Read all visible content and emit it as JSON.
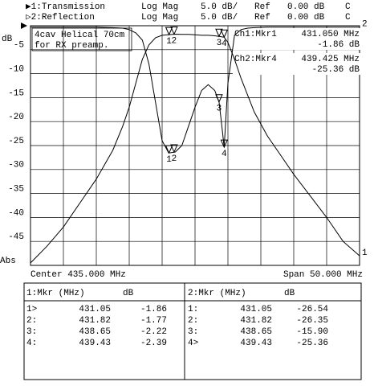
{
  "chart_data": {
    "type": "line",
    "header": [
      [
        "▶1:Transmission",
        "Log Mag",
        "5.0 dB/",
        "Ref",
        "0.00 dB",
        "C"
      ],
      [
        "▷2:Reflection",
        "Log Mag",
        "5.0 dB/",
        "Ref",
        "0.00 dB",
        "C"
      ]
    ],
    "y_label": "dB",
    "annotation": [
      "4cav Helical 70cm",
      "for RX preamp."
    ],
    "readouts": [
      [
        "Ch1:Mkr1",
        "431.050 MHz",
        "-1.86 dB"
      ],
      [
        "Ch2:Mkr4",
        "439.425 MHz",
        "-25.36 dB"
      ]
    ],
    "center_label": "Center 435.000 MHz",
    "span_label": "Span 50.000 MHz",
    "x": [
      410,
      412.5,
      415,
      417.5,
      420,
      422.5,
      424,
      425,
      426,
      427,
      428,
      429,
      430,
      431,
      432,
      433,
      434,
      435,
      436,
      437,
      438,
      438.65,
      439,
      439.43,
      440,
      441,
      442,
      443,
      444,
      446,
      448,
      450,
      452.5,
      455,
      457.5,
      460
    ],
    "series": [
      {
        "name": "1",
        "color": "#000000",
        "values": [
          -49.5,
          -46,
          -42,
          -37,
          -32,
          -26,
          -21,
          -17,
          -12,
          -7,
          -4,
          -2.5,
          -2,
          -1.86,
          -1.77,
          -1.8,
          -1.8,
          -1.9,
          -2,
          -2,
          -2.1,
          -2.22,
          -2.3,
          -2.39,
          -3.5,
          -7,
          -11,
          -14.5,
          -18,
          -23,
          -27,
          -31,
          -35.5,
          -40,
          -45,
          -48
        ],
        "markers": {
          "x": [
            431.05,
            431.82,
            438.65,
            439.43
          ],
          "y": [
            -1.86,
            -1.77,
            -2.22,
            -2.39
          ],
          "labels": [
            "1",
            "2",
            "3",
            "4"
          ]
        }
      },
      {
        "name": "2",
        "color": "#000000",
        "values": [
          -0.3,
          -0.3,
          -0.3,
          -0.3,
          -0.3,
          -0.4,
          -0.5,
          -0.8,
          -1.5,
          -3,
          -8,
          -16,
          -24,
          -26.54,
          -26.35,
          -25,
          -21,
          -17,
          -13.5,
          -12.3,
          -13.5,
          -15.9,
          -20,
          -25.36,
          -12,
          -2,
          -0.8,
          -0.5,
          -0.4,
          -0.3,
          -0.3,
          -0.3,
          -0.3,
          -0.3,
          -0.3,
          -0.3
        ],
        "markers": {
          "x": [
            431.05,
            431.82,
            438.65,
            439.43
          ],
          "y": [
            -26.54,
            -26.35,
            -15.9,
            -25.36
          ],
          "labels": [
            "1",
            "2",
            "3",
            "4"
          ]
        }
      }
    ],
    "xlim": [
      410,
      460
    ],
    "xticks": [
      410,
      415,
      420,
      425,
      430,
      435,
      440,
      445,
      450,
      455,
      460
    ],
    "ylim": [
      -50,
      0
    ],
    "yticks": [
      -5,
      -10,
      -15,
      -20,
      -25,
      -30,
      -35,
      -40,
      -45,
      {
        "value": -50,
        "label": "Abs"
      }
    ],
    "grid": true,
    "tables": [
      {
        "header": [
          "1:Mkr (MHz)",
          "dB"
        ],
        "rows": [
          [
            "1>",
            "431.05",
            "-1.86"
          ],
          [
            "2:",
            "431.82",
            "-1.77"
          ],
          [
            "3:",
            "438.65",
            "-2.22"
          ],
          [
            "4:",
            "439.43",
            "-2.39"
          ]
        ]
      },
      {
        "header": [
          "2:Mkr (MHz)",
          "dB"
        ],
        "rows": [
          [
            "1:",
            "431.05",
            "-26.54"
          ],
          [
            "2:",
            "431.82",
            "-26.35"
          ],
          [
            "3:",
            "438.65",
            "-15.90"
          ],
          [
            "4>",
            "439.43",
            "-25.36"
          ]
        ]
      }
    ]
  }
}
